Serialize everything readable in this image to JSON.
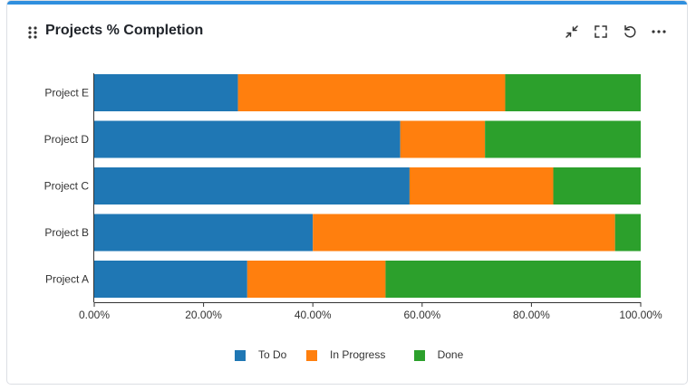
{
  "widget": {
    "title": "Projects % Completion",
    "accent_color": "#2f8fde",
    "icons": [
      "drag-handle-icon",
      "minimize-icon",
      "fullscreen-icon",
      "refresh-icon",
      "more-options-icon"
    ]
  },
  "chart_data": {
    "type": "bar",
    "orientation": "horizontal",
    "stacked": true,
    "categories": [
      "Project A",
      "Project B",
      "Project C",
      "Project D",
      "Project E"
    ],
    "series": [
      {
        "name": "To Do",
        "color": "#1f77b4",
        "values": [
          28,
          40,
          57.7,
          56,
          26.3
        ]
      },
      {
        "name": "In Progress",
        "color": "#ff7f0e",
        "values": [
          25.3,
          55.3,
          26.3,
          15.5,
          48.9
        ]
      },
      {
        "name": "Done",
        "color": "#2ca02c",
        "values": [
          46.7,
          4.7,
          16,
          28.5,
          24.8
        ]
      }
    ],
    "x_ticks": [
      "0.00%",
      "20.00%",
      "40.00%",
      "60.00%",
      "80.00%",
      "100.00%"
    ],
    "xlim": [
      0,
      100
    ],
    "grid": false,
    "legend_position": "bottom-center"
  }
}
